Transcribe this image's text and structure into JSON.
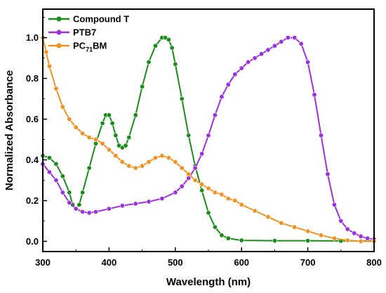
{
  "chart_data": {
    "type": "line",
    "xlabel": "Wavelength (nm)",
    "ylabel": "Normalized Absorbance",
    "xlim": [
      300,
      800
    ],
    "ylim": [
      -0.05,
      1.14
    ],
    "xticks": [
      300,
      400,
      500,
      600,
      700,
      800
    ],
    "xtick_labels": [
      "300",
      "400",
      "500",
      "600",
      "700",
      "800"
    ],
    "yticks": [
      0.0,
      0.2,
      0.4,
      0.6,
      0.8,
      1.0
    ],
    "ytick_labels": [
      "0.0",
      "0.2",
      "0.4",
      "0.6",
      "0.8",
      "1.0"
    ],
    "grid": false,
    "legend_position": "top-left",
    "series": [
      {
        "name": "Compound T",
        "name_main": "Compound T",
        "color": "#1a8c1a",
        "marker": "circle",
        "points": [
          [
            300,
            0.42
          ],
          [
            310,
            0.41
          ],
          [
            320,
            0.38
          ],
          [
            330,
            0.32
          ],
          [
            340,
            0.24
          ],
          [
            345,
            0.18
          ],
          [
            350,
            0.16
          ],
          [
            355,
            0.18
          ],
          [
            360,
            0.24
          ],
          [
            370,
            0.36
          ],
          [
            380,
            0.48
          ],
          [
            390,
            0.58
          ],
          [
            395,
            0.62
          ],
          [
            400,
            0.62
          ],
          [
            405,
            0.58
          ],
          [
            410,
            0.52
          ],
          [
            415,
            0.47
          ],
          [
            420,
            0.46
          ],
          [
            425,
            0.47
          ],
          [
            430,
            0.51
          ],
          [
            440,
            0.62
          ],
          [
            450,
            0.76
          ],
          [
            460,
            0.88
          ],
          [
            470,
            0.96
          ],
          [
            480,
            1.0
          ],
          [
            485,
            1.0
          ],
          [
            490,
            0.99
          ],
          [
            495,
            0.95
          ],
          [
            500,
            0.87
          ],
          [
            510,
            0.7
          ],
          [
            520,
            0.52
          ],
          [
            530,
            0.37
          ],
          [
            540,
            0.25
          ],
          [
            550,
            0.14
          ],
          [
            560,
            0.07
          ],
          [
            570,
            0.03
          ],
          [
            580,
            0.015
          ],
          [
            600,
            0.005
          ],
          [
            650,
            0.003
          ],
          [
            700,
            0.003
          ],
          [
            750,
            0.002
          ],
          [
            800,
            0.002
          ]
        ]
      },
      {
        "name": "PTB7",
        "name_main": "PTB7",
        "color": "#9b30e0",
        "marker": "circle",
        "points": [
          [
            300,
            0.38
          ],
          [
            310,
            0.34
          ],
          [
            320,
            0.3
          ],
          [
            330,
            0.24
          ],
          [
            340,
            0.19
          ],
          [
            350,
            0.16
          ],
          [
            360,
            0.145
          ],
          [
            370,
            0.14
          ],
          [
            380,
            0.145
          ],
          [
            400,
            0.16
          ],
          [
            420,
            0.175
          ],
          [
            440,
            0.185
          ],
          [
            460,
            0.195
          ],
          [
            480,
            0.21
          ],
          [
            500,
            0.24
          ],
          [
            510,
            0.27
          ],
          [
            520,
            0.31
          ],
          [
            530,
            0.36
          ],
          [
            540,
            0.43
          ],
          [
            550,
            0.52
          ],
          [
            560,
            0.62
          ],
          [
            570,
            0.71
          ],
          [
            580,
            0.77
          ],
          [
            590,
            0.82
          ],
          [
            600,
            0.85
          ],
          [
            610,
            0.88
          ],
          [
            620,
            0.9
          ],
          [
            630,
            0.92
          ],
          [
            640,
            0.94
          ],
          [
            650,
            0.96
          ],
          [
            660,
            0.98
          ],
          [
            670,
            1.0
          ],
          [
            680,
            1.0
          ],
          [
            690,
            0.97
          ],
          [
            700,
            0.88
          ],
          [
            710,
            0.72
          ],
          [
            720,
            0.52
          ],
          [
            730,
            0.33
          ],
          [
            740,
            0.18
          ],
          [
            750,
            0.1
          ],
          [
            760,
            0.06
          ],
          [
            770,
            0.04
          ],
          [
            780,
            0.025
          ],
          [
            790,
            0.015
          ],
          [
            800,
            0.01
          ]
        ]
      },
      {
        "name": "PC71BM",
        "name_main": "PC",
        "name_sub": "71",
        "name_tail": "BM",
        "color": "#f0921e",
        "marker": "circle",
        "points": [
          [
            300,
            1.0
          ],
          [
            305,
            0.93
          ],
          [
            310,
            0.86
          ],
          [
            320,
            0.75
          ],
          [
            330,
            0.66
          ],
          [
            340,
            0.6
          ],
          [
            350,
            0.56
          ],
          [
            360,
            0.53
          ],
          [
            370,
            0.51
          ],
          [
            380,
            0.5
          ],
          [
            390,
            0.48
          ],
          [
            400,
            0.45
          ],
          [
            410,
            0.42
          ],
          [
            420,
            0.39
          ],
          [
            430,
            0.37
          ],
          [
            440,
            0.36
          ],
          [
            450,
            0.37
          ],
          [
            460,
            0.39
          ],
          [
            470,
            0.41
          ],
          [
            480,
            0.42
          ],
          [
            490,
            0.41
          ],
          [
            500,
            0.39
          ],
          [
            510,
            0.36
          ],
          [
            520,
            0.33
          ],
          [
            530,
            0.3
          ],
          [
            540,
            0.28
          ],
          [
            550,
            0.26
          ],
          [
            560,
            0.24
          ],
          [
            570,
            0.23
          ],
          [
            580,
            0.21
          ],
          [
            590,
            0.2
          ],
          [
            600,
            0.18
          ],
          [
            620,
            0.15
          ],
          [
            640,
            0.12
          ],
          [
            660,
            0.09
          ],
          [
            680,
            0.07
          ],
          [
            700,
            0.05
          ],
          [
            720,
            0.03
          ],
          [
            740,
            0.015
          ],
          [
            760,
            0.005
          ],
          [
            780,
            0.0
          ],
          [
            800,
            0.0
          ]
        ]
      }
    ]
  }
}
